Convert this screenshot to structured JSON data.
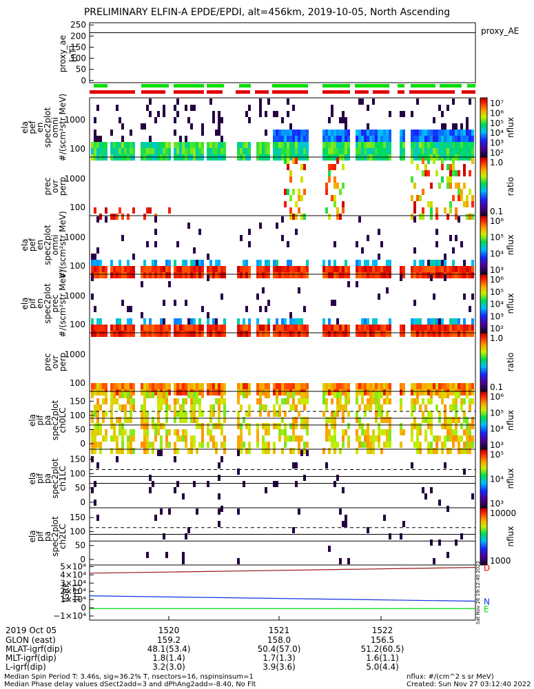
{
  "title": "PRELIMINARY ELFIN-A EPDE/EPDI, alt=456km, 2019-10-05, North Ascending",
  "colors": {
    "red": "#e00000",
    "green": "#00dd00",
    "blue": "#1030e0",
    "black": "#000000",
    "darkred": "#9a1010"
  },
  "chart_data": [
    {
      "type": "line",
      "name": "proxy_ae",
      "ylabel": "proxy_ae [nT]",
      "legend": "proxy_AE",
      "ylim": [
        -10,
        260
      ],
      "yticks": [
        "250",
        "200",
        "150",
        "100",
        "50",
        "0"
      ],
      "series": [
        {
          "name": "proxy_AE",
          "values": [
            215,
            215
          ]
        }
      ]
    },
    {
      "type": "heatmap",
      "name": "ela_pef_en_spec2plot_omni",
      "ylabel": "ela pef en spec2plot omni #/(scm²str MeV)",
      "yticks": [
        "1000",
        "100"
      ],
      "colorbar_label": "nflux",
      "colorbar_ticks": [
        "10⁷",
        "10⁶",
        "10⁵",
        "10⁴",
        "10³",
        "10²"
      ]
    },
    {
      "type": "heatmap",
      "name": "prec_ovr_perp_e",
      "ylabel": "prec ovr perp",
      "yticks": [
        "1000",
        "100"
      ],
      "colorbar_label": "ratio",
      "colorbar_ticks": [
        "1.0",
        "0.1"
      ]
    },
    {
      "type": "heatmap",
      "name": "ela_pef_en_spec2plot_omni_2",
      "ylabel": "ela pef en spec2plot omni #/(scm²str MeV)",
      "yticks": [
        "1000",
        "100"
      ],
      "colorbar_label": "nflux",
      "colorbar_ticks": [
        "10⁶",
        "10⁵",
        "10⁴",
        "10³"
      ]
    },
    {
      "type": "heatmap",
      "name": "ela_pif_en_spec2plot_prec",
      "ylabel": "ela pif en spec2plot prec #/(scm²str MeV)",
      "yticks": [
        "1000",
        "100"
      ],
      "colorbar_label": "nflux",
      "colorbar_ticks": [
        "10⁶",
        "10⁵",
        "10⁴",
        "10³",
        "10²"
      ]
    },
    {
      "type": "heatmap",
      "name": "prec_ovr_perp_i",
      "ylabel": "prec ovr perp",
      "yticks": [
        "1000",
        "100"
      ],
      "colorbar_label": "ratio",
      "colorbar_ticks": [
        "1.0",
        "0.1"
      ]
    },
    {
      "type": "heatmap",
      "name": "ela_pif_pa_spec2plot_ch0LC",
      "ylabel": "ela pif pa spec2plot ch0LC",
      "yticks": [
        "150",
        "100",
        "50",
        "0"
      ],
      "colorbar_label": "nflux",
      "colorbar_ticks": [
        "10⁶",
        "10⁵",
        "10⁴",
        "10³"
      ]
    },
    {
      "type": "heatmap",
      "name": "ela_pif_pa_spec2plot_ch1LC",
      "ylabel": "ela pif pa spec2plot ch1LC",
      "yticks": [
        "150",
        "100",
        "50",
        "0"
      ],
      "colorbar_label": "nflux",
      "colorbar_ticks": [
        "10⁵",
        "10⁴",
        "10³"
      ]
    },
    {
      "type": "heatmap",
      "name": "ela_pif_pa_spec2plot_ch2LC",
      "ylabel": "ela pif pa spec2plot ch2LC",
      "yticks": [
        "150",
        "100",
        "50",
        "0"
      ],
      "colorbar_label": "nflux",
      "colorbar_ticks": [
        "10000",
        "1000"
      ]
    },
    {
      "type": "line",
      "name": "igrf",
      "ylabel": "IGRF [nT]",
      "yticks": [
        "5×10⁴",
        "4×10⁴",
        "3×10⁴",
        "2×10⁴",
        "1×10⁴",
        "0",
        "−1×10⁴"
      ],
      "ylim": [
        -15000,
        52000
      ],
      "series": [
        {
          "name": "D",
          "values": [
            42000,
            49000
          ]
        },
        {
          "name": "N",
          "values": [
            14500,
            8000
          ]
        },
        {
          "name": "E",
          "values": [
            -1000,
            -1000
          ]
        }
      ]
    }
  ],
  "xaxis": {
    "rows": [
      "2019 Oct 05",
      "GLON (east)",
      "MLAT-igrf(dip)",
      "MLT-igrf(dip)",
      "L-igrf(dip)"
    ],
    "ticks": [
      {
        "time": "1520",
        "glon": "159.2",
        "mlat": "48.1(53.4)",
        "mlt": "1.8(1.4)",
        "l": "3.2(3.0)"
      },
      {
        "time": "1521",
        "glon": "158.0",
        "mlat": "50.4(57.0)",
        "mlt": "1.7(1.3)",
        "l": "3.9(3.6)"
      },
      {
        "time": "1522",
        "glon": "156.5",
        "mlat": "51.2(60.5)",
        "mlt": "1.6(1.1)",
        "l": "5.0(4.4)"
      }
    ]
  },
  "footer": {
    "line1": "Median Spin Period T: 3.46s, sig=36.2% T, nsectors=16, nspinsinsum=1",
    "line2": "Median Phase delay values dSect2add=3 and dPhAng2add=-8.40, No Flt",
    "units": "nflux: #/(cm^2 s sr MeV)",
    "created": "Created: Sun Nov 27 03:12:40 2022",
    "sidestamp": "Sat Nov 26 19:12:40 2022"
  }
}
